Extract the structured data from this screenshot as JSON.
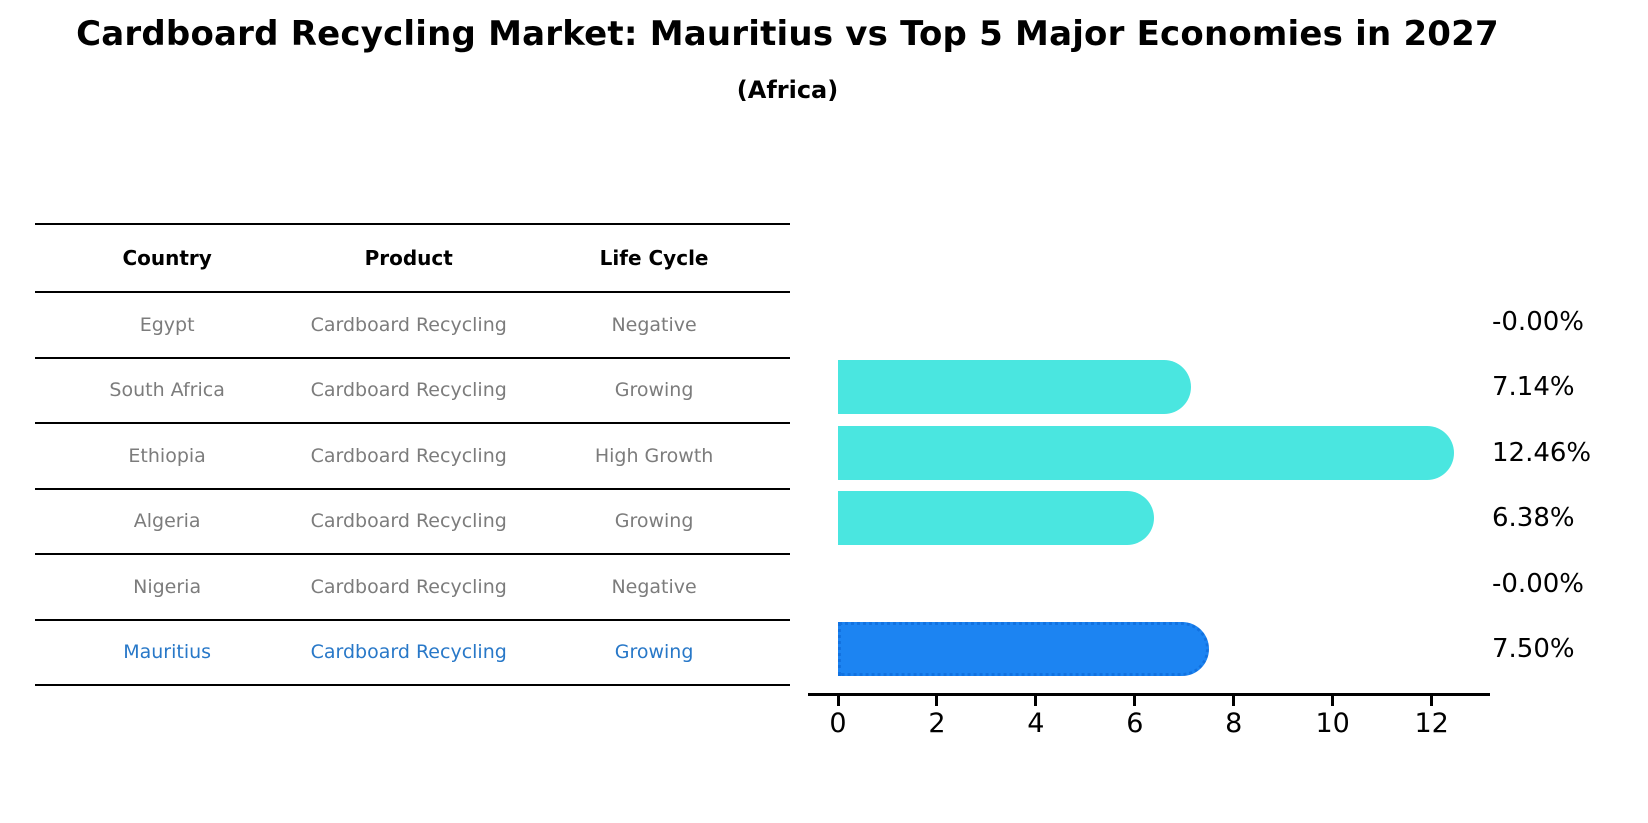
{
  "title": "Cardboard Recycling Market: Mauritius vs Top 5 Major Economies in 2027",
  "subtitle": "(Africa)",
  "table": {
    "headers": [
      "Country",
      "Product",
      "Life Cycle"
    ],
    "rows": [
      {
        "country": "Egypt",
        "product": "Cardboard Recycling",
        "life_cycle": "Negative"
      },
      {
        "country": "South Africa",
        "product": "Cardboard Recycling",
        "life_cycle": "Growing"
      },
      {
        "country": "Ethiopia",
        "product": "Cardboard Recycling",
        "life_cycle": "High Growth"
      },
      {
        "country": "Algeria",
        "product": "Cardboard Recycling",
        "life_cycle": "Growing"
      },
      {
        "country": "Nigeria",
        "product": "Cardboard Recycling",
        "life_cycle": "Negative"
      },
      {
        "country": "Mauritius",
        "product": "Cardboard Recycling",
        "life_cycle": "Growing"
      }
    ],
    "highlight_row": "Mauritius"
  },
  "chart_data": {
    "type": "bar",
    "orientation": "horizontal",
    "title": "Cardboard Recycling Market: Mauritius vs Top 5 Major Economies in 2027 (Africa)",
    "categories": [
      "Egypt",
      "South Africa",
      "Ethiopia",
      "Algeria",
      "Nigeria",
      "Mauritius"
    ],
    "values": [
      -0.0,
      7.14,
      12.46,
      6.38,
      -0.0,
      7.5
    ],
    "bar_labels": [
      "-0.00%",
      "7.14%",
      "12.46%",
      "6.38%",
      "-0.00%",
      "7.50%"
    ],
    "xticks": [
      0,
      2,
      4,
      6,
      8,
      10,
      12
    ],
    "xlim": [
      0,
      13.2
    ],
    "grid": false,
    "legend": "none",
    "bar_color": "#4ae6e0",
    "highlight_color": "#1c84f2",
    "highlight_index": 5
  },
  "colors": {
    "background": "#ffffff",
    "table_text": "#7c7c7c",
    "table_header_text": "#000000",
    "highlight_text": "#2878c8",
    "axis": "#000000"
  }
}
